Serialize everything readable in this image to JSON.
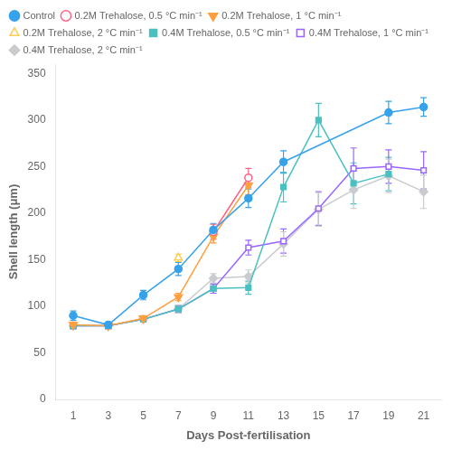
{
  "chart_data": {
    "type": "line",
    "xlabel": "Days Post-fertilisation",
    "ylabel": "Shell length (μm)",
    "xlim": [
      0,
      22
    ],
    "xticks": [
      1,
      3,
      5,
      7,
      9,
      11,
      13,
      15,
      17,
      19,
      21
    ],
    "ylim": [
      0,
      360
    ],
    "yticks": [
      0,
      50,
      100,
      150,
      200,
      250,
      300,
      350
    ],
    "grid": false,
    "legend": "upper left",
    "series": [
      {
        "name": "Control",
        "marker": "circle",
        "x": [
          1,
          3,
          5,
          7,
          9,
          11,
          13,
          19,
          21
        ],
        "values": [
          90,
          80,
          112,
          140,
          182,
          216,
          255,
          308,
          314
        ],
        "yerr": [
          5,
          3,
          5,
          7,
          7,
          10,
          12,
          12,
          10
        ]
      },
      {
        "name": "0.2M Trehalose, 0.5 °C min⁻¹",
        "marker": "circle-open",
        "x": [
          9,
          11
        ],
        "values": [
          180,
          238
        ],
        "yerr": [
          8,
          10
        ]
      },
      {
        "name": "0.2M Trehalose, 1 °C min⁻¹",
        "marker": "triangle-down",
        "x": [
          1,
          3,
          5,
          7,
          9,
          11
        ],
        "values": [
          80,
          79,
          87,
          110,
          175,
          230
        ],
        "yerr": [
          3,
          3,
          3,
          4,
          7,
          10
        ]
      },
      {
        "name": "0.2M Trehalose, 2 °C min⁻¹",
        "marker": "triangle-open",
        "x": [
          7
        ],
        "values": [
          152
        ],
        "yerr": [
          4
        ]
      },
      {
        "name": "0.4M Trehalose, 0.5 °C min⁻¹",
        "marker": "square",
        "x": [
          1,
          3,
          5,
          7,
          9,
          11,
          13,
          15,
          17,
          19
        ],
        "values": [
          79,
          79,
          86,
          97,
          119,
          120,
          228,
          300,
          232,
          242
        ],
        "yerr": [
          3,
          3,
          3,
          4,
          5,
          7,
          16,
          18,
          22,
          18
        ]
      },
      {
        "name": "0.4M Trehalose, 1 °C min⁻¹",
        "marker": "square-open",
        "x": [
          1,
          3,
          5,
          7,
          9,
          11,
          13,
          15,
          17,
          19,
          21
        ],
        "values": [
          79,
          79,
          86,
          97,
          119,
          163,
          170,
          205,
          248,
          250,
          246
        ],
        "yerr": [
          3,
          3,
          3,
          4,
          5,
          8,
          13,
          18,
          22,
          18,
          20
        ]
      },
      {
        "name": "0.4M Trehalose, 2 °C min⁻¹",
        "marker": "diamond",
        "x": [
          1,
          3,
          5,
          7,
          9,
          11,
          13,
          15,
          17,
          19,
          21
        ],
        "values": [
          79,
          79,
          86,
          97,
          130,
          132,
          167,
          204,
          225,
          240,
          223
        ],
        "yerr": [
          3,
          3,
          3,
          4,
          5,
          7,
          13,
          18,
          20,
          18,
          18
        ]
      }
    ]
  }
}
